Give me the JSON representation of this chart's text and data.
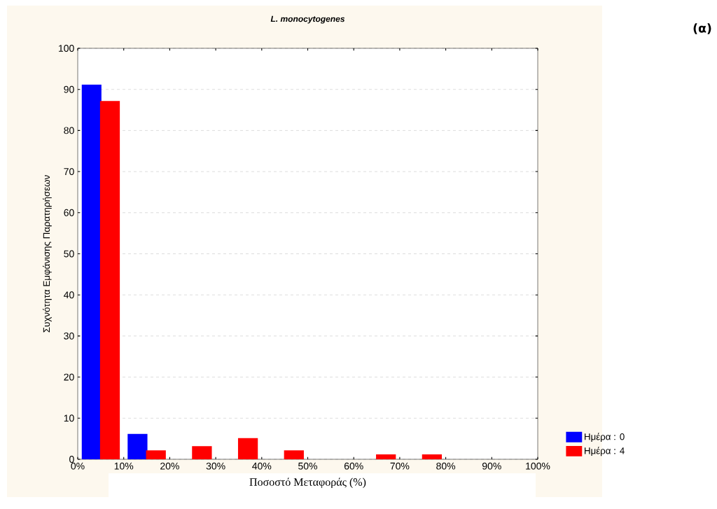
{
  "chart_data": {
    "type": "bar",
    "title": "*L. monocytogenes*",
    "xlabel": "Ποσοστό Μεταφοράς (%)",
    "ylabel": "Συχνότητα Εμφάνισης Παρατηρήσεων",
    "annotations": [
      "(α)"
    ],
    "x": [
      5,
      15,
      25,
      35,
      45,
      55,
      65,
      75,
      85,
      95
    ],
    "series": [
      {
        "name": "Ημέρα : 0",
        "color": "#0000ff",
        "values": [
          91,
          6,
          0,
          0,
          0,
          0,
          0,
          0,
          0,
          0
        ]
      },
      {
        "name": "Ημέρα : 4",
        "color": "#ff0000",
        "values": [
          87,
          2,
          3,
          5,
          2,
          0,
          1,
          1,
          0,
          0
        ]
      }
    ],
    "xlim": [
      0,
      100
    ],
    "xticks": [
      {
        "value": 0,
        "label": "0%"
      },
      {
        "value": 10,
        "label": "10%"
      },
      {
        "value": 20,
        "label": "20%"
      },
      {
        "value": 30,
        "label": "30%"
      },
      {
        "value": 40,
        "label": "40%"
      },
      {
        "value": 50,
        "label": "50%"
      },
      {
        "value": 60,
        "label": "60%"
      },
      {
        "value": 70,
        "label": "70%"
      },
      {
        "value": 80,
        "label": "80%"
      },
      {
        "value": 90,
        "label": "90%"
      },
      {
        "value": 100,
        "label": "100%"
      }
    ],
    "ylim": [
      0,
      100
    ],
    "yticks": [
      0,
      10,
      20,
      30,
      40,
      50,
      60,
      70,
      80,
      90,
      100
    ],
    "grid": "y",
    "legend": "bottom right"
  }
}
